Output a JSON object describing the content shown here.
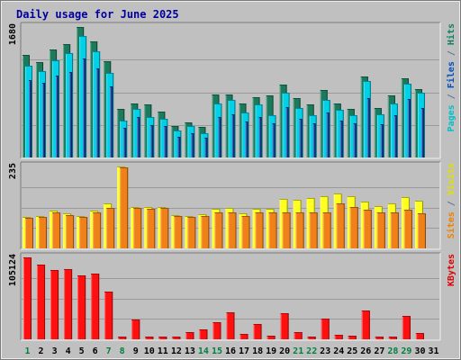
{
  "chart_data": {
    "type": "bar",
    "title": "Daily usage for June 2025",
    "categories": [
      "1",
      "2",
      "3",
      "4",
      "5",
      "6",
      "7",
      "8",
      "9",
      "10",
      "11",
      "12",
      "13",
      "14",
      "15",
      "16",
      "17",
      "18",
      "19",
      "20",
      "21",
      "22",
      "23",
      "24",
      "25",
      "26",
      "27",
      "28",
      "29",
      "30",
      "31"
    ],
    "weekend_days": [
      1,
      7,
      8,
      14,
      15,
      21,
      22,
      28,
      29
    ],
    "panels": [
      {
        "id": "hits-files-pages",
        "y_max_label": "1680",
        "ylim": [
          0,
          1680
        ],
        "legend": [
          {
            "text": "Pages",
            "color": "#00c0c8"
          },
          {
            "text": " / ",
            "color": "#6070a0"
          },
          {
            "text": "Files",
            "color": "#0050c0"
          },
          {
            "text": " / ",
            "color": "#6070a0"
          },
          {
            "text": "Hits",
            "color": "#108060"
          }
        ],
        "series": [
          {
            "name": "Hits",
            "color": "#1b7a5c",
            "values": [
              1320,
              1230,
              1390,
              1460,
              1680,
              1500,
              1240,
              620,
              700,
              680,
              590,
              410,
              450,
              390,
              810,
              810,
              700,
              780,
              800,
              940,
              760,
              680,
              870,
              690,
              630,
              1040,
              640,
              800,
              1020,
              880,
              0
            ]
          },
          {
            "name": "Files",
            "color": "#00d0e8",
            "values": [
              1180,
              1110,
              1250,
              1340,
              1560,
              1370,
              1090,
              480,
              620,
              520,
              500,
              350,
              400,
              310,
              690,
              740,
              580,
              680,
              550,
              830,
              640,
              540,
              740,
              610,
              550,
              990,
              560,
              690,
              950,
              830,
              0
            ]
          },
          {
            "name": "Pages",
            "color": "#1040a0",
            "values": [
              1000,
              960,
              1050,
              1100,
              1280,
              1150,
              920,
              380,
              520,
              420,
              400,
              270,
              310,
              250,
              520,
              560,
              460,
              520,
              440,
              650,
              500,
              440,
              580,
              480,
              440,
              760,
              430,
              540,
              750,
              640,
              0
            ]
          }
        ]
      },
      {
        "id": "visits-sites",
        "y_max_label": "235",
        "ylim": [
          0,
          235
        ],
        "legend": [
          {
            "text": "Sites",
            "color": "#f08000"
          },
          {
            "text": " / ",
            "color": "#6070a0"
          },
          {
            "text": "Visits",
            "color": "#e0e000"
          }
        ],
        "series": [
          {
            "name": "Visits",
            "color": "#ffff20",
            "values": [
              90,
              92,
              108,
              100,
              94,
              108,
              128,
              235,
              119,
              118,
              119,
              95,
              94,
              97,
              113,
              117,
              100,
              113,
              113,
              141,
              139,
              144,
              150,
              158,
              149,
              133,
              122,
              129,
              147,
              137,
              0
            ]
          },
          {
            "name": "Sites",
            "color": "#f08018",
            "values": [
              88,
              90,
              104,
              96,
              90,
              104,
              116,
              232,
              115,
              114,
              115,
              92,
              90,
              94,
              104,
              104,
              94,
              104,
              104,
              104,
              104,
              104,
              104,
              128,
              120,
              111,
              104,
              104,
              111,
              100,
              0
            ]
          }
        ]
      },
      {
        "id": "kbytes",
        "y_max_label": "105124",
        "ylim": [
          0,
          105124
        ],
        "legend": [
          {
            "text": "KBytes",
            "color": "#e00000"
          }
        ],
        "series": [
          {
            "name": "KBytes",
            "color": "#ff1010",
            "values": [
              105124,
              95800,
              89000,
              90200,
              81900,
              84700,
              60700,
              3600,
              25400,
              2900,
              2900,
              3300,
              9400,
              12600,
              21400,
              35000,
              6900,
              19400,
              4200,
              33100,
              9500,
              3300,
              27000,
              5400,
              4500,
              36400,
              2900,
              3000,
              29700,
              8400,
              0
            ]
          }
        ]
      }
    ]
  },
  "colors": {
    "background": "#c0c0c0",
    "title": "#0000a0",
    "axis_text": "#000000",
    "weekend_text": "#008040"
  }
}
